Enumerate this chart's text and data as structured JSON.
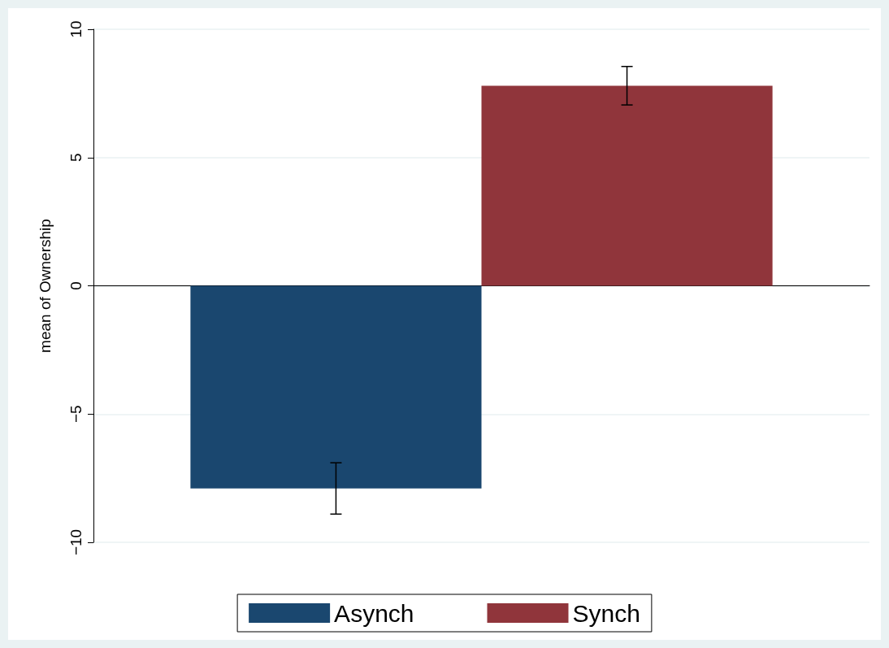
{
  "chart_data": {
    "type": "bar",
    "ylabel": "mean of Ownership",
    "categories": [
      null
    ],
    "series": [
      {
        "name": "Asynch",
        "color": "#1a476f",
        "values": [
          -7.9
        ],
        "errors": [
          [
            -8.9,
            -6.9
          ]
        ]
      },
      {
        "name": "Synch",
        "color": "#90353b",
        "values": [
          7.8
        ],
        "errors": [
          [
            7.05,
            8.55
          ]
        ]
      }
    ],
    "ylim": [
      -10,
      10
    ],
    "yticks": [
      -10,
      -5,
      0,
      5,
      10
    ],
    "grid": "y",
    "legend": "bottom"
  }
}
